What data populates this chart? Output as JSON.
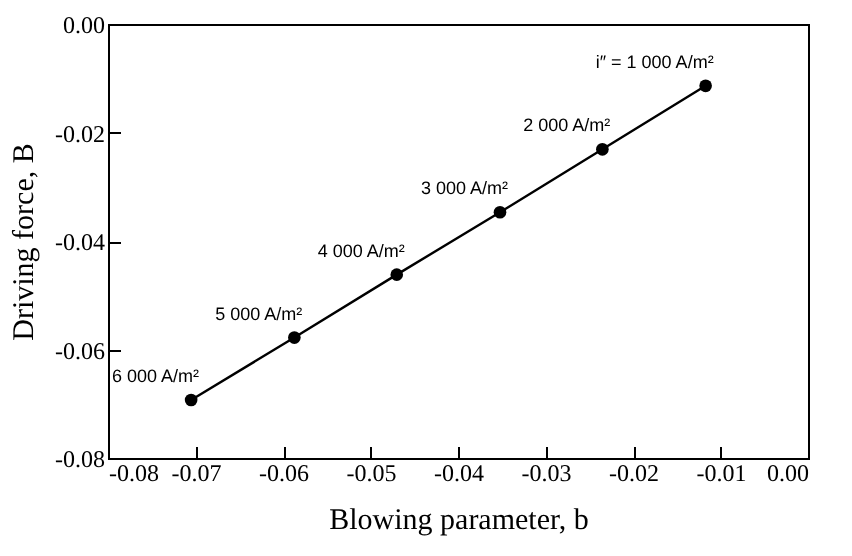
{
  "chart_data": {
    "type": "line",
    "xlabel": "Blowing parameter, b",
    "ylabel": "Driving force, B",
    "x": [
      -0.0117,
      -0.0235,
      -0.0352,
      -0.047,
      -0.0587,
      -0.0705
    ],
    "series": [
      {
        "color": "#000000",
        "values": [
          -0.0114,
          -0.0231,
          -0.0347,
          -0.0462,
          -0.0578,
          -0.0693
        ]
      }
    ],
    "xlim": [
      -0.08,
      0.0
    ],
    "xticks": [
      -0.08,
      -0.07,
      -0.06,
      -0.05,
      -0.04,
      -0.03,
      -0.02,
      -0.01,
      {
        "value": 0,
        "label": "0.00"
      }
    ],
    "ylim": [
      -0.08,
      0.0
    ],
    "yticks": [
      -0.08,
      -0.06,
      -0.04,
      -0.02,
      {
        "value": 0,
        "label": "0.00"
      }
    ],
    "marker": "circle",
    "line_style": "solid",
    "grid": false,
    "legend": false,
    "annotations": [
      {
        "text": "i″ = 1 000 A/m²",
        "x": -0.0117,
        "y": -0.0114
      },
      {
        "text": "2 000 A/m²",
        "x": -0.0235,
        "y": -0.0231
      },
      {
        "text": "3 000 A/m²",
        "x": -0.0352,
        "y": -0.0347
      },
      {
        "text": "4 000 A/m²",
        "x": -0.047,
        "y": -0.0462
      },
      {
        "text": "5 000 A/m²",
        "x": -0.0587,
        "y": -0.0578
      },
      {
        "text": "6 000 A/m²",
        "x": -0.0705,
        "y": -0.0693
      }
    ]
  }
}
